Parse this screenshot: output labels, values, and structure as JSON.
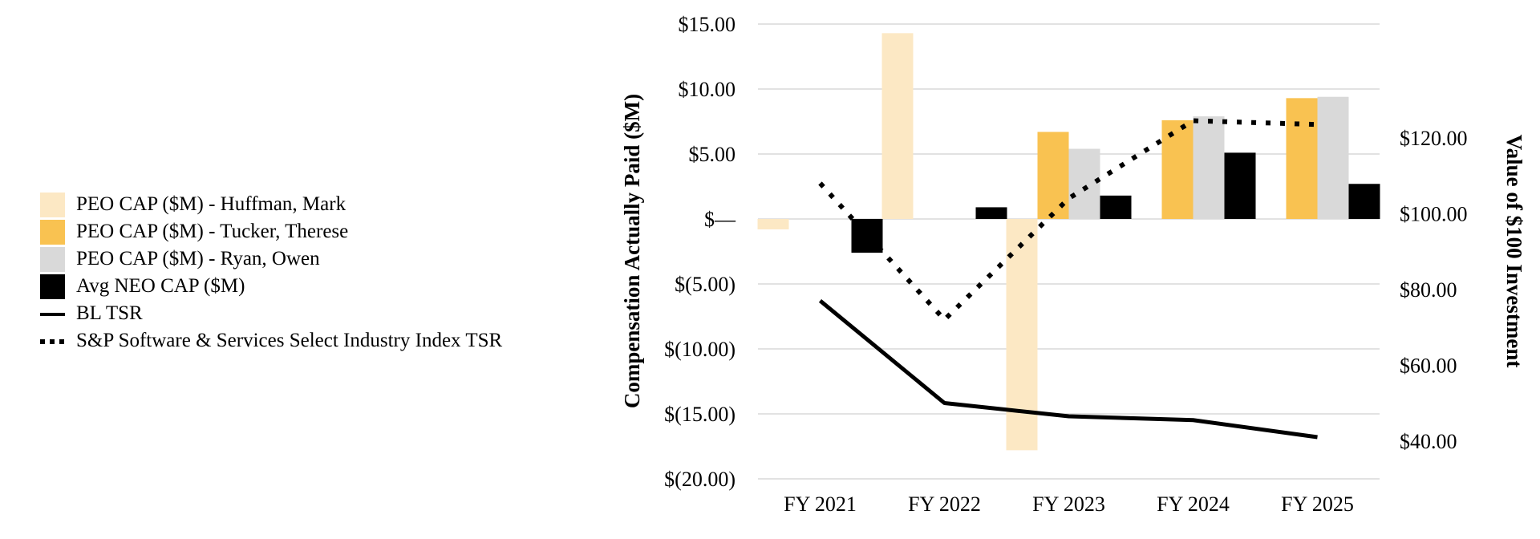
{
  "chart_data": {
    "type": "bar+line",
    "categories": [
      "FY 2021",
      "FY 2022",
      "FY 2023",
      "FY 2024",
      "FY 2025"
    ],
    "left_axis": {
      "label": "Compensation Actually Paid ($M)",
      "min": -20,
      "max": 15,
      "step": 5,
      "tick_labels": [
        "$(20.00)",
        "$(15.00)",
        "$(10.00)",
        "$(5.00)",
        "$—",
        "$5.00",
        "$10.00",
        "$15.00"
      ]
    },
    "right_axis": {
      "label": "Value of $100 Investment",
      "min": 30,
      "max": 150,
      "ticks": [
        40,
        60,
        80,
        100,
        120
      ],
      "tick_labels": [
        "$40.00",
        "$60.00",
        "$80.00",
        "$100.00",
        "$120.00"
      ]
    },
    "bar_series": [
      {
        "name": "PEO CAP ($M) - Huffman, Mark",
        "color": "#fce8c4",
        "values": [
          -0.8,
          14.3,
          -17.8,
          null,
          null
        ]
      },
      {
        "name": "PEO CAP ($M) - Tucker, Therese",
        "color": "#f9c251",
        "values": [
          null,
          null,
          6.7,
          7.6,
          9.3
        ]
      },
      {
        "name": "PEO CAP ($M) - Ryan, Owen",
        "color": "#d9d9d9",
        "values": [
          null,
          null,
          5.4,
          7.9,
          9.4
        ]
      },
      {
        "name": "Avg NEO CAP ($M)",
        "color": "#000000",
        "values": [
          -2.6,
          0.9,
          1.8,
          5.1,
          2.7
        ]
      }
    ],
    "line_series": [
      {
        "name": "BL TSR",
        "style": "solid",
        "values": [
          77,
          50,
          46.5,
          45.5,
          41
        ]
      },
      {
        "name": "S&P Software & Services Select Industry Index TSR",
        "style": "dotted",
        "values": [
          108,
          72,
          104,
          124.5,
          123.5
        ]
      }
    ]
  },
  "legend": [
    {
      "label": "PEO CAP ($M) - Huffman, Mark",
      "kind": "box",
      "color": "#fce8c4"
    },
    {
      "label": "PEO CAP ($M) - Tucker, Therese",
      "kind": "box",
      "color": "#f9c251"
    },
    {
      "label": "PEO CAP ($M) - Ryan, Owen",
      "kind": "box",
      "color": "#d9d9d9"
    },
    {
      "label": "Avg NEO CAP ($M)",
      "kind": "box",
      "color": "#000000"
    },
    {
      "label": "BL TSR",
      "kind": "solid"
    },
    {
      "label": "S&P Software & Services Select Industry Index TSR",
      "kind": "dotted"
    }
  ]
}
